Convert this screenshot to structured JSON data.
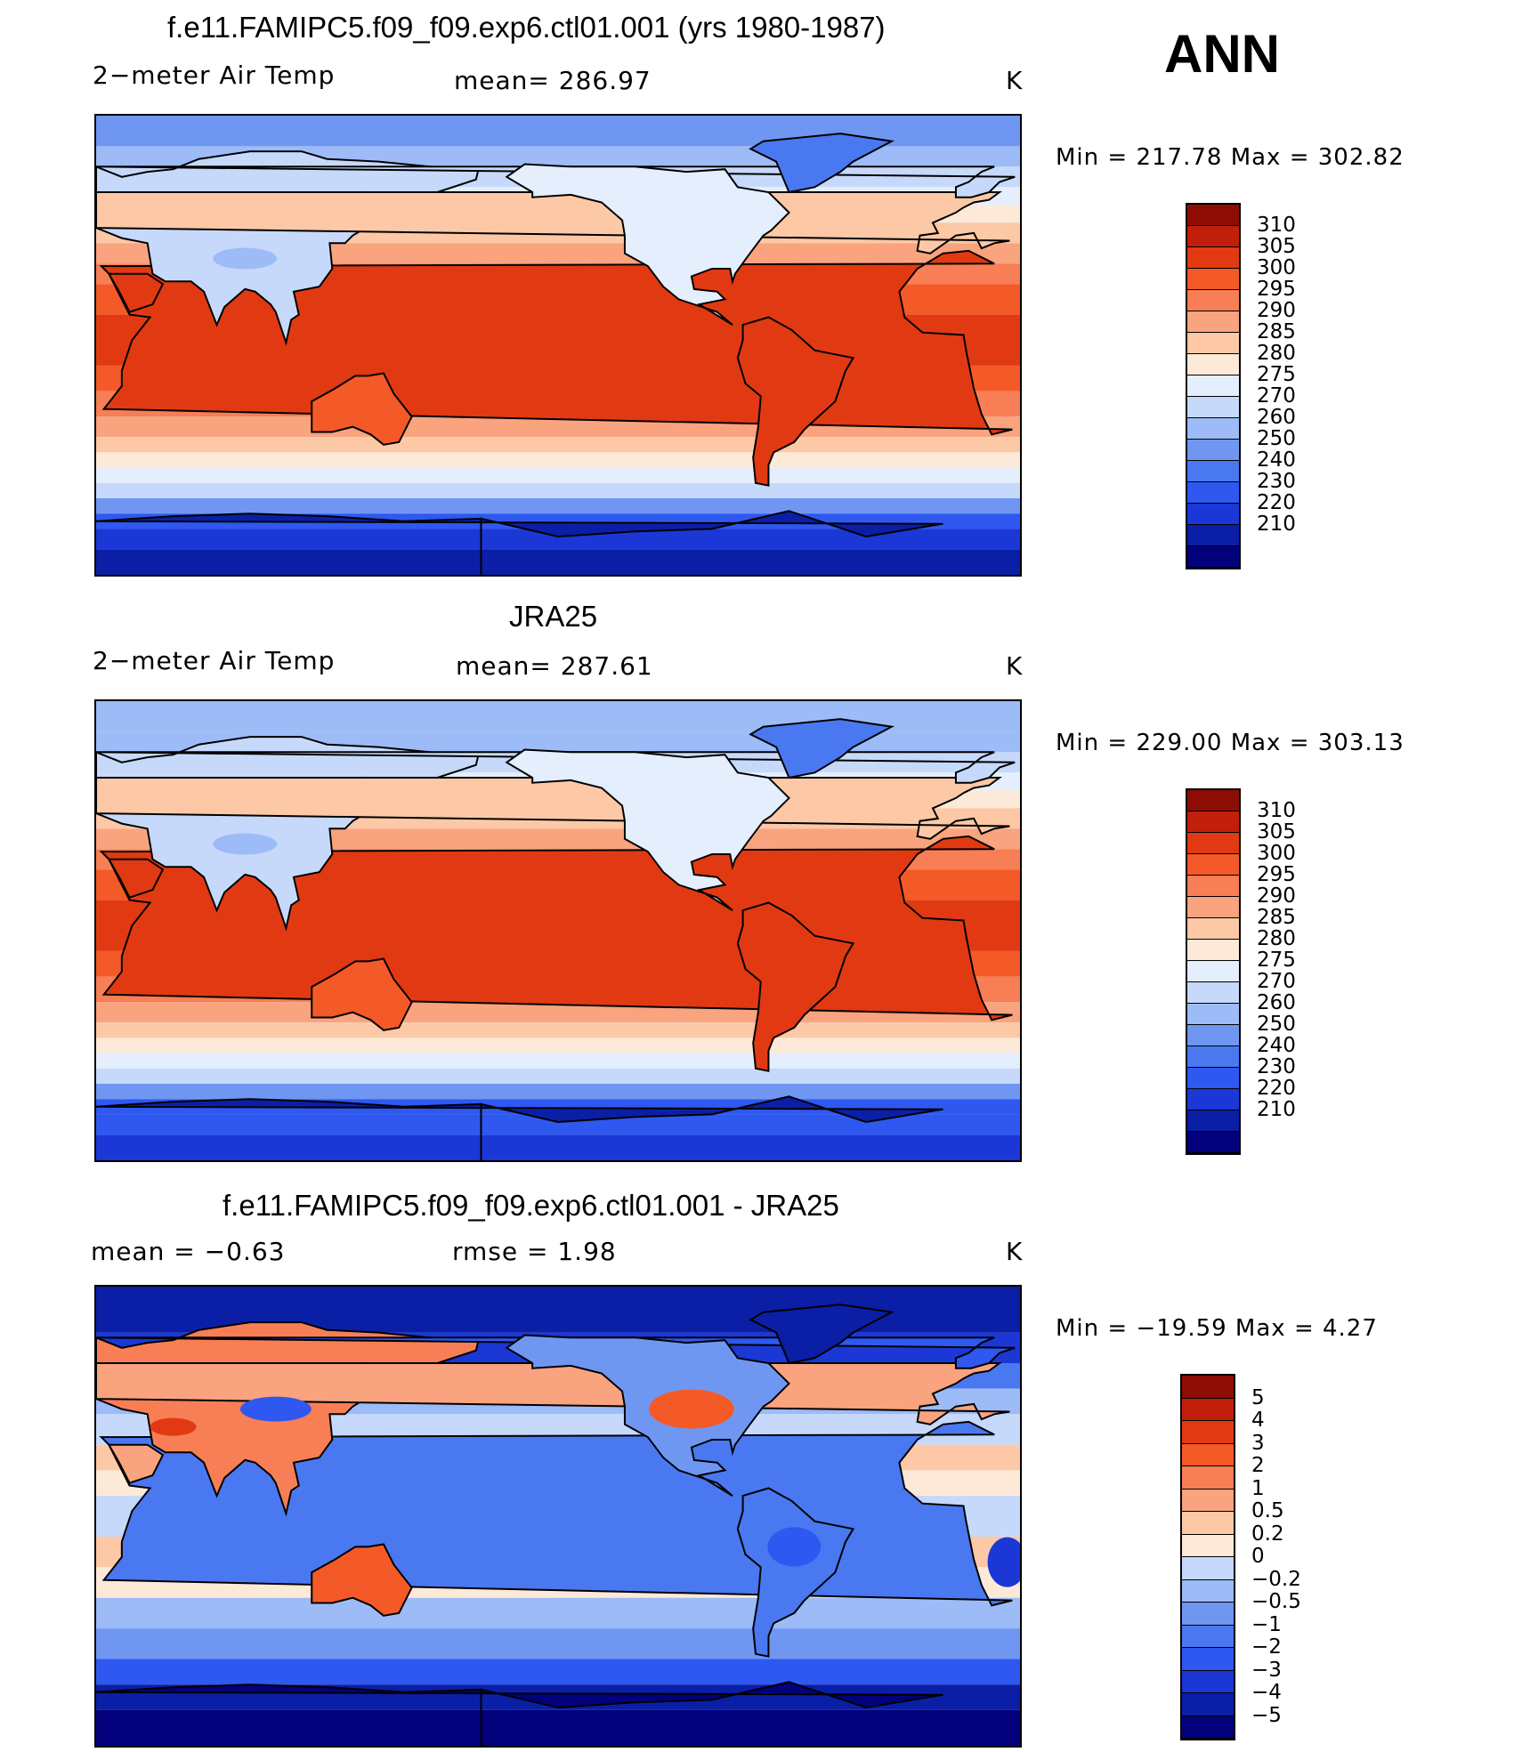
{
  "season": "ANN",
  "colors": {
    "absolute": [
      "#02007a",
      "#0a1fa6",
      "#1b37d6",
      "#2e58f0",
      "#4a78f0",
      "#6f97f2",
      "#9dbbf7",
      "#c6d9fb",
      "#e4eefd",
      "#fde9d8",
      "#fcc8a6",
      "#f9a37f",
      "#f77e55",
      "#f45a28",
      "#e13a12",
      "#c21f0a",
      "#8e0d05"
    ],
    "diff": [
      "#02007a",
      "#0a1fa6",
      "#1b37d6",
      "#2e58f0",
      "#4a78f0",
      "#6f97f2",
      "#9dbbf7",
      "#c6d9fb",
      "#fde9d8",
      "#fcc8a6",
      "#f9a37f",
      "#f77e55",
      "#f45a28",
      "#e13a12",
      "#c21f0a",
      "#8e0d05"
    ]
  },
  "panels": [
    {
      "id": "model",
      "title": "f.e11.FAMIPC5.f09_f09.exp6.ctl01.001 (yrs 1980-1987)",
      "left_label": "2−meter Air Temp",
      "center_label": "mean=  286.97",
      "units": "K",
      "minmax": "Min  =  217.78  Max  =  302.82",
      "colorbar_type": "absolute",
      "levels": [
        "310",
        "305",
        "300",
        "295",
        "290",
        "285",
        "280",
        "275",
        "270",
        "260",
        "250",
        "240",
        "230",
        "220",
        "210"
      ]
    },
    {
      "id": "obs",
      "title": "JRA25",
      "left_label": "2−meter Air Temp",
      "center_label": "mean=  287.61",
      "units": "K",
      "minmax": "Min  =  229.00  Max  =  303.13",
      "colorbar_type": "absolute",
      "levels": [
        "310",
        "305",
        "300",
        "295",
        "290",
        "285",
        "280",
        "275",
        "270",
        "260",
        "250",
        "240",
        "230",
        "220",
        "210"
      ]
    },
    {
      "id": "diff",
      "title": "f.e11.FAMIPC5.f09_f09.exp6.ctl01.001 - JRA25",
      "left_label": "mean  =    −0.63",
      "center_label": "rmse  =     1.98",
      "units": "K",
      "minmax": "Min  =  −19.59  Max  =      4.27",
      "colorbar_type": "diff",
      "levels": [
        "5",
        "4",
        "3",
        "2",
        "1",
        "0.5",
        "0.2",
        "0",
        "−0.2",
        "−0.5",
        "−1",
        "−2",
        "−3",
        "−4",
        "−5"
      ]
    }
  ]
}
